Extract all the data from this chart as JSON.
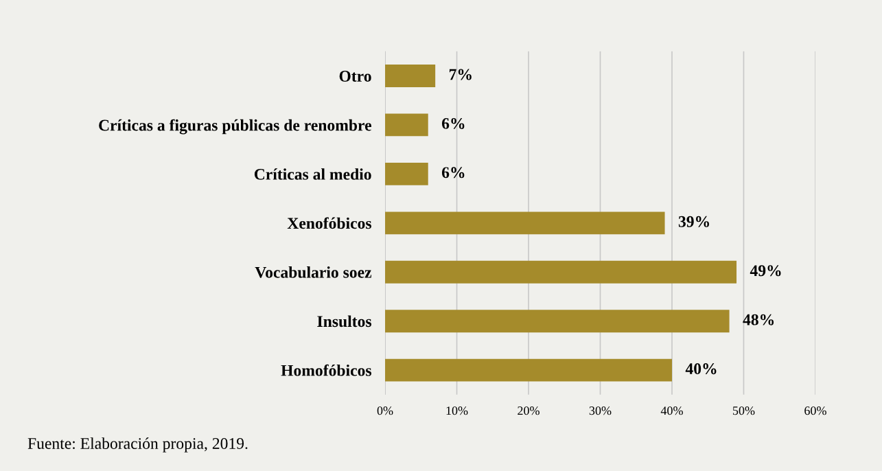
{
  "chart_data": {
    "type": "bar",
    "orientation": "horizontal",
    "categories": [
      "Otro",
      "Críticas a figuras públicas de renombre",
      "Críticas al medio",
      "Xenofóbicos",
      "Vocabulario soez",
      "Insultos",
      "Homofóbicos"
    ],
    "values": [
      7,
      6,
      6,
      39,
      49,
      48,
      40
    ],
    "value_labels": [
      "7%",
      "6%",
      "6%",
      "39%",
      "49%",
      "48%",
      "40%"
    ],
    "color": "#a58b2b",
    "xlim": [
      0,
      60
    ],
    "xticks": [
      {
        "value": 0,
        "label": "0%"
      },
      {
        "value": 10,
        "label": "10%"
      },
      {
        "value": 20,
        "label": "20%"
      },
      {
        "value": 30,
        "label": "30%"
      },
      {
        "value": 40,
        "label": "40%"
      },
      {
        "value": 50,
        "label": "50%"
      },
      {
        "value": 60,
        "label": "60%"
      }
    ],
    "grid": "x",
    "legend": false,
    "annotations": [
      "Fuente: Elaboración propia, 2019."
    ]
  }
}
